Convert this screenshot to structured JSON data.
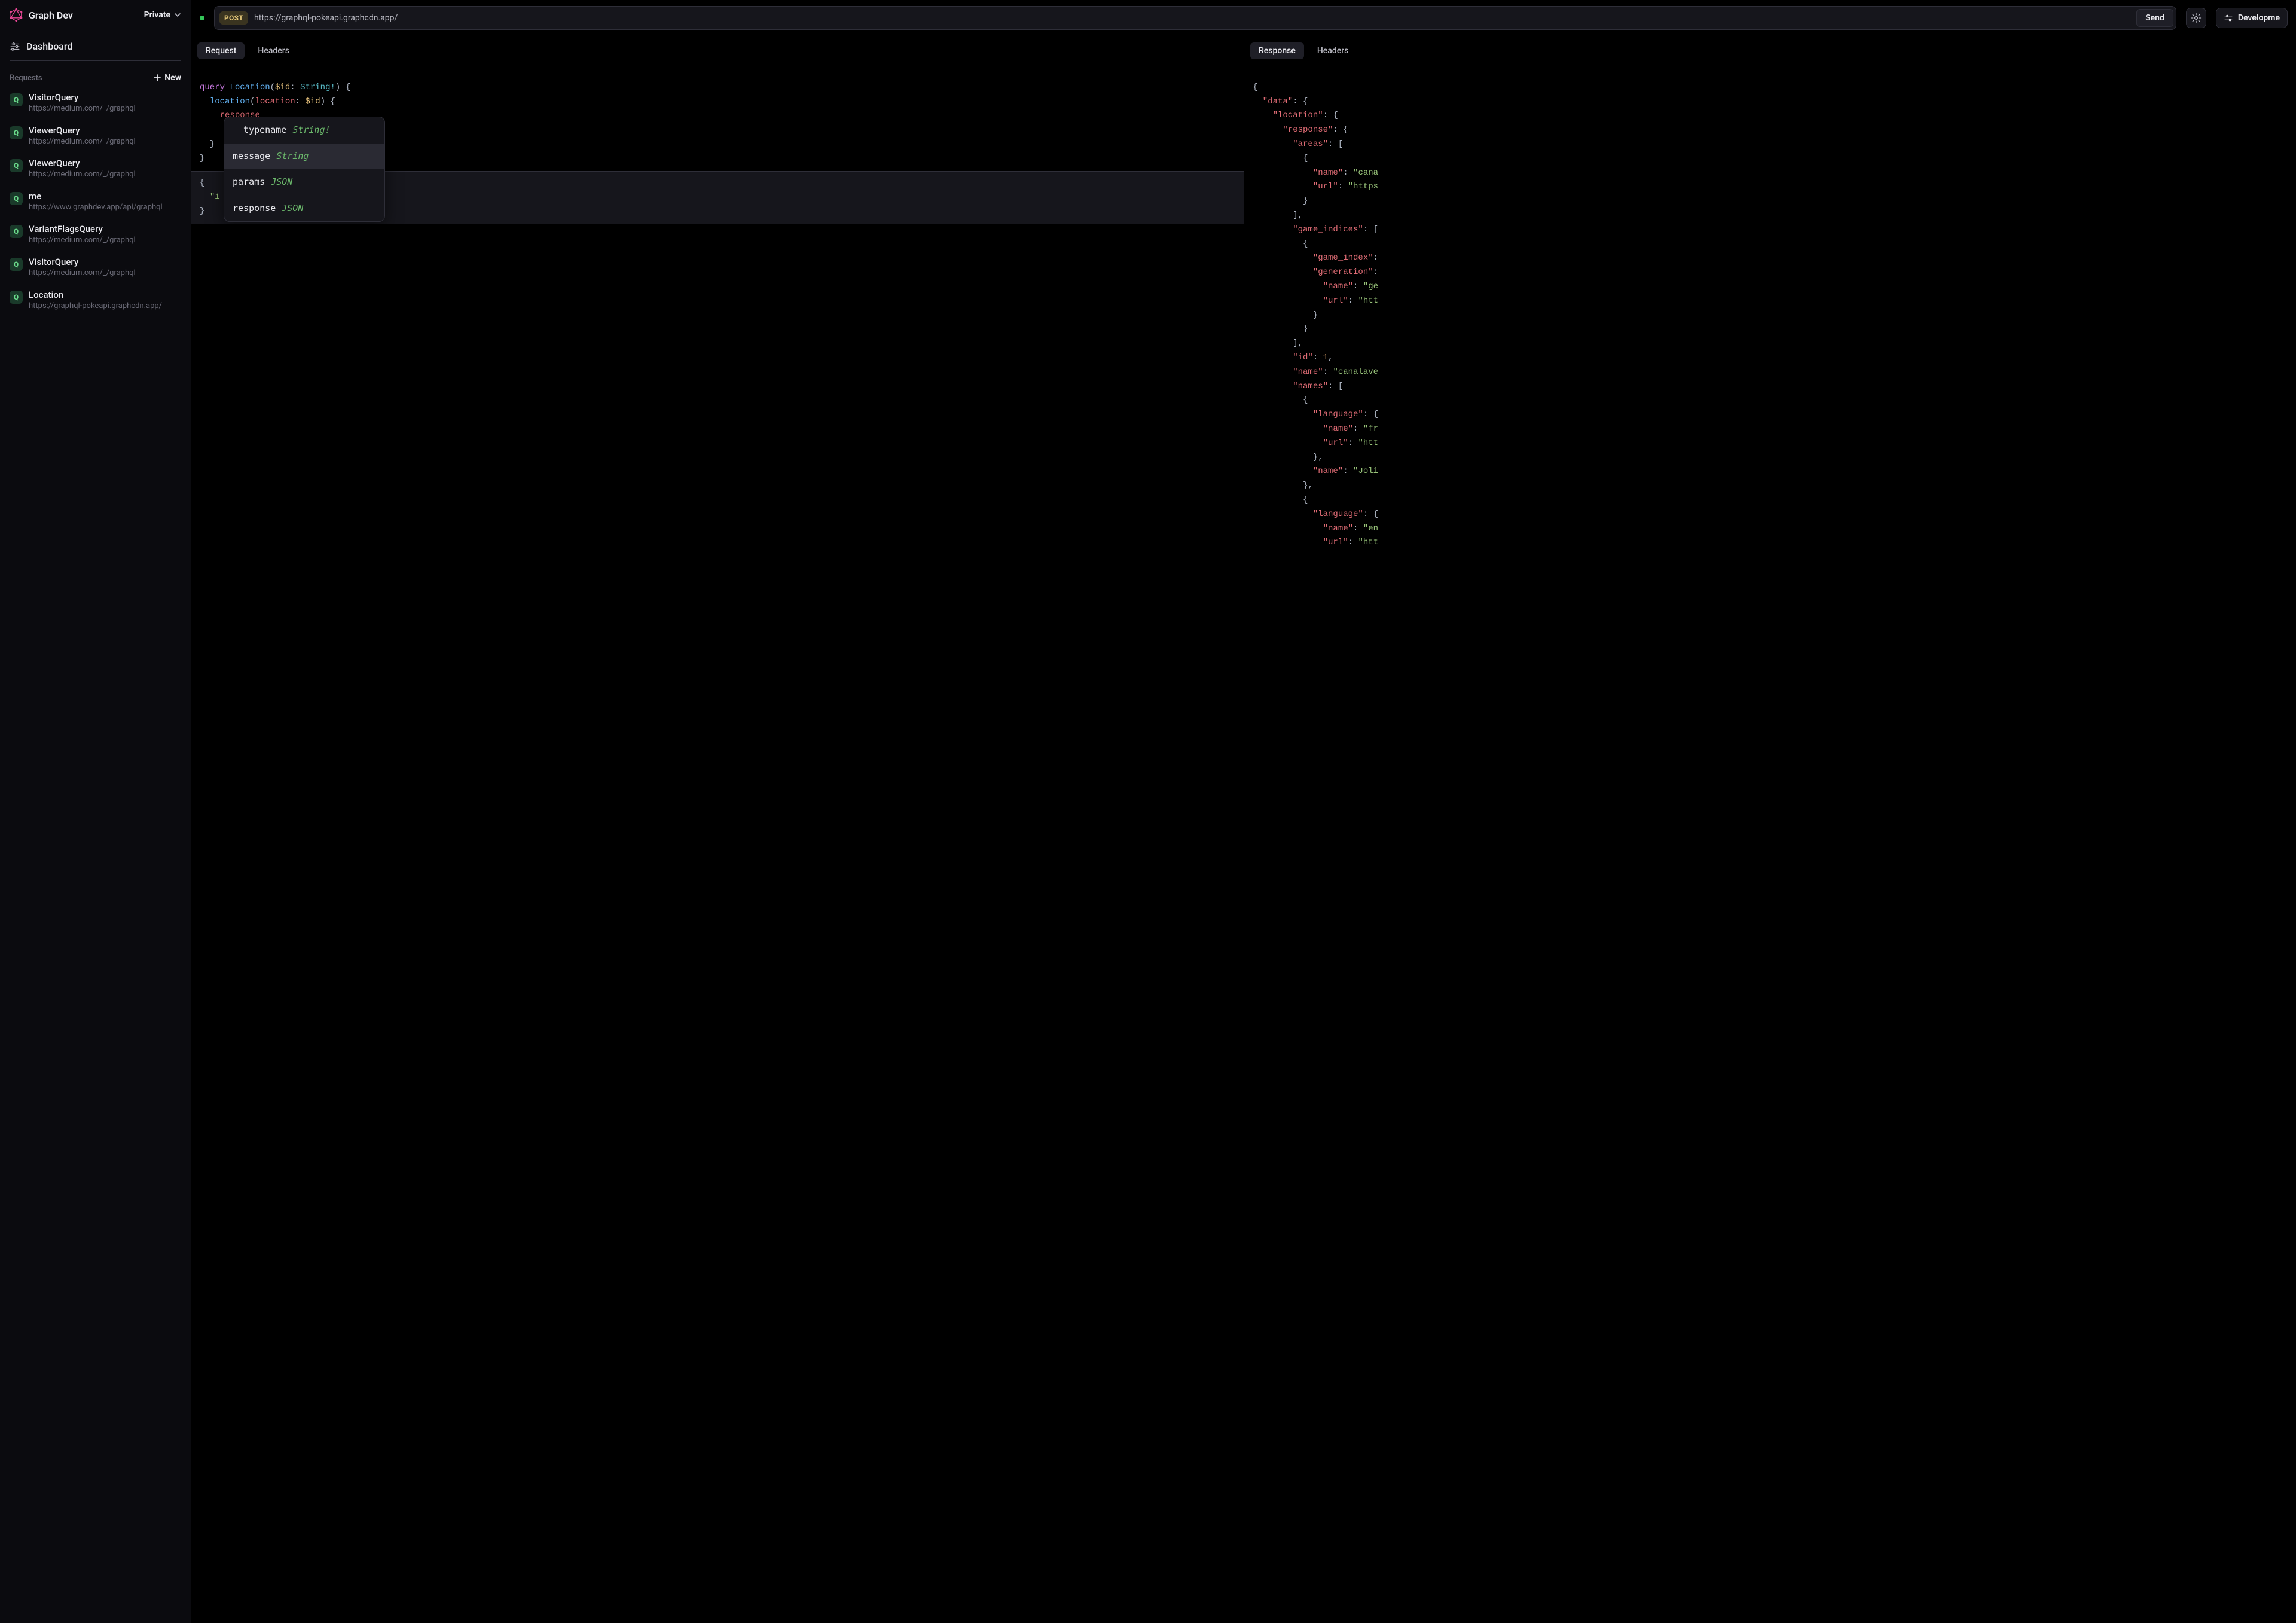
{
  "brand": {
    "name": "Graph Dev",
    "visibility": "Private"
  },
  "nav": {
    "dashboard": "Dashboard"
  },
  "requests": {
    "header": "Requests",
    "new_label": "New",
    "items": [
      {
        "badge": "Q",
        "name": "VisitorQuery",
        "url": "https://medium.com/_/graphql"
      },
      {
        "badge": "Q",
        "name": "ViewerQuery",
        "url": "https://medium.com/_/graphql"
      },
      {
        "badge": "Q",
        "name": "ViewerQuery",
        "url": "https://medium.com/_/graphql"
      },
      {
        "badge": "Q",
        "name": "me",
        "url": "https://www.graphdev.app/api/graphql"
      },
      {
        "badge": "Q",
        "name": "VariantFlagsQuery",
        "url": "https://medium.com/_/graphql"
      },
      {
        "badge": "Q",
        "name": "VisitorQuery",
        "url": "https://medium.com/_/graphql"
      },
      {
        "badge": "Q",
        "name": "Location",
        "url": "https://graphql-pokeapi.graphcdn.app/"
      }
    ]
  },
  "topbar": {
    "method": "POST",
    "url": "https://graphql-pokeapi.graphcdn.app/",
    "send": "Send",
    "env": "Developme"
  },
  "request_pane": {
    "tabs": [
      "Request",
      "Headers"
    ],
    "selected_tab": 0,
    "query": {
      "kw_query": "query",
      "op_name": "Location",
      "var_decl_prefix": "(",
      "var_name": "$id",
      "var_type": "String!",
      "var_decl_suffix": ")",
      "open": "{",
      "field_fn": "location",
      "arg_open": "(",
      "arg_name": "location",
      "arg_colon": ":",
      "arg_val": "$id",
      "arg_close": ")",
      "child_field": "response",
      "close1": "}",
      "close2": "}",
      "close3": "}"
    },
    "variables": {
      "open": "{",
      "key_start": "\"i",
      "close": "}"
    },
    "autocomplete": {
      "items": [
        {
          "name": "__typename",
          "type": "String!"
        },
        {
          "name": "message",
          "type": "String"
        },
        {
          "name": "params",
          "type": "JSON"
        },
        {
          "name": "response",
          "type": "JSON"
        }
      ],
      "selected": 1
    }
  },
  "response_pane": {
    "tabs": [
      "Response",
      "Headers"
    ],
    "selected_tab": 0,
    "json": {
      "l1": "{",
      "l2a": "  \"data\"",
      "l2b": ": {",
      "l3a": "    \"location\"",
      "l3b": ": {",
      "l4a": "      \"response\"",
      "l4b": ": {",
      "l5a": "        \"areas\"",
      "l5b": ": [",
      "l6": "          {",
      "l7a": "            \"name\"",
      "l7b": ": ",
      "l7c": "\"cana",
      "l8a": "            \"url\"",
      "l8b": ": ",
      "l8c": "\"https",
      "l9": "          }",
      "l10": "        ],",
      "l11a": "        \"game_indices\"",
      "l11b": ": [",
      "l12": "          {",
      "l13a": "            \"game_index\"",
      "l13b": ":",
      "l14a": "            \"generation\"",
      "l14b": ":",
      "l15a": "              \"name\"",
      "l15b": ": ",
      "l15c": "\"ge",
      "l16a": "              \"url\"",
      "l16b": ": ",
      "l16c": "\"htt",
      "l17": "            }",
      "l18": "          }",
      "l19": "        ],",
      "l20a": "        \"id\"",
      "l20b": ": ",
      "l20c": "1",
      "l20d": ",",
      "l21a": "        \"name\"",
      "l21b": ": ",
      "l21c": "\"canalave",
      "l22a": "        \"names\"",
      "l22b": ": [",
      "l23": "          {",
      "l24a": "            \"language\"",
      "l24b": ": {",
      "l25a": "              \"name\"",
      "l25b": ": ",
      "l25c": "\"fr",
      "l26a": "              \"url\"",
      "l26b": ": ",
      "l26c": "\"htt",
      "l27": "            },",
      "l28a": "            \"name\"",
      "l28b": ": ",
      "l28c": "\"Joli",
      "l29": "          },",
      "l30": "          {",
      "l31a": "            \"language\"",
      "l31b": ": {",
      "l32a": "              \"name\"",
      "l32b": ": ",
      "l32c": "\"en",
      "l33a": "              \"url\"",
      "l33b": ": ",
      "l33c": "\"htt"
    }
  },
  "colors": {
    "status_dot": "#34c759",
    "logo": "#e74694"
  }
}
